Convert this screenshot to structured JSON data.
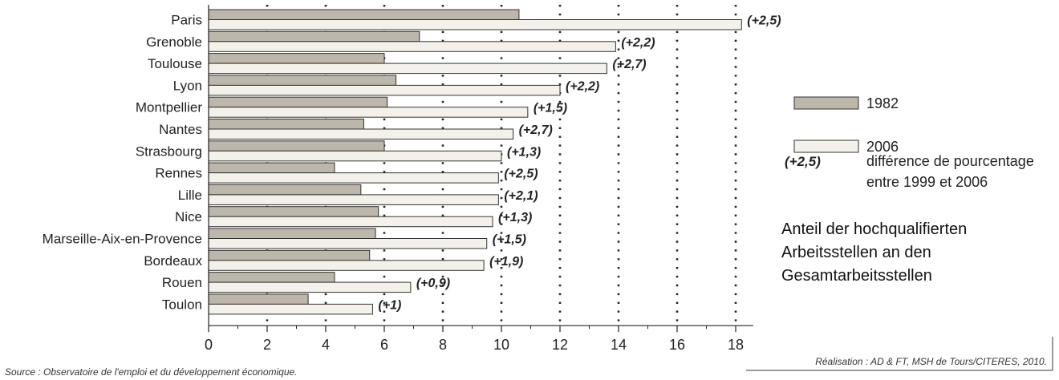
{
  "chart_data": {
    "type": "bar",
    "orientation": "horizontal",
    "categories": [
      "Paris",
      "Grenoble",
      "Toulouse",
      "Lyon",
      "Montpellier",
      "Nantes",
      "Strasbourg",
      "Rennes",
      "Lille",
      "Nice",
      "Marseille-Aix-en-Provence",
      "Bordeaux",
      "Rouen",
      "Toulon"
    ],
    "series": [
      {
        "name": "1982",
        "color": "#bdb6ab",
        "values": [
          10.6,
          7.2,
          6.0,
          6.4,
          6.1,
          5.3,
          6.0,
          4.3,
          5.2,
          5.8,
          5.7,
          5.5,
          4.3,
          3.4
        ]
      },
      {
        "name": "2006",
        "color": "#f4f1ea",
        "values": [
          18.2,
          13.9,
          13.6,
          12.0,
          10.9,
          10.4,
          10.0,
          9.9,
          9.9,
          9.7,
          9.5,
          9.4,
          6.9,
          5.6
        ]
      }
    ],
    "annotations": [
      "(+2,5)",
      "(+2,2)",
      "(+2,7)",
      "(+2,2)",
      "(+1,5)",
      "(+2,7)",
      "(+1,3)",
      "(+2,5)",
      "(+2,1)",
      "(+1,3)",
      "(+1,5)",
      "(+1,9)",
      "(+0,9)",
      "(+1)"
    ],
    "xticks": [
      0,
      2,
      4,
      6,
      8,
      10,
      12,
      14,
      16,
      18
    ],
    "xlim": [
      0,
      18.6
    ],
    "grid": "dotted vertical lines",
    "legend": {
      "placement": "right",
      "entries": [
        "1982",
        "2006"
      ],
      "diff_sample": "(+2,5)",
      "diff_text_line1": "différence de pourcentage",
      "diff_text_line2": "entre 1999 et 2006"
    },
    "source_left": "Source : Observatoire de l'emploi et du développement économique.",
    "source_right": "Réalisation : AD & FT, MSH de Tours/CITERES, 2010."
  },
  "note": {
    "line1": "Anteil der hochqualifierten",
    "line2": "Arbeitsstellen  an den",
    "line3": "Gesamtarbeitsstellen"
  }
}
